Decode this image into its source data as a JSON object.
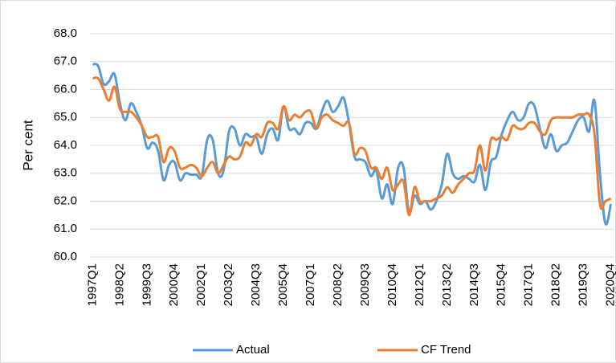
{
  "chart_data": {
    "type": "line",
    "y_label": "Per cent",
    "categories": [
      "1997Q1",
      null,
      null,
      null,
      null,
      "1998Q2",
      null,
      null,
      null,
      null,
      "1999Q3",
      null,
      null,
      null,
      null,
      "2000Q4",
      null,
      null,
      null,
      null,
      "2002Q1",
      null,
      null,
      null,
      null,
      "2003Q2",
      null,
      null,
      null,
      null,
      "2004Q3",
      null,
      null,
      null,
      null,
      "2005Q4",
      null,
      null,
      null,
      null,
      "2007Q1",
      null,
      null,
      null,
      null,
      "2008Q2",
      null,
      null,
      null,
      null,
      "2009Q3",
      null,
      null,
      null,
      null,
      "2010Q4",
      null,
      null,
      null,
      null,
      "2012Q1",
      null,
      null,
      null,
      null,
      "2013Q2",
      null,
      null,
      null,
      null,
      "2014Q3",
      null,
      null,
      null,
      null,
      "2015Q4",
      null,
      null,
      null,
      null,
      "2017Q1",
      null,
      null,
      null,
      null,
      "2018Q2",
      null,
      null,
      null,
      null,
      "2019Q3",
      null,
      null,
      null,
      null,
      "2020Q4"
    ],
    "series": [
      {
        "name": "Actual",
        "color": "#5b9bd5",
        "values": [
          66.9,
          66.85,
          66.2,
          66.3,
          66.55,
          65.5,
          64.9,
          65.5,
          65.2,
          64.7,
          63.9,
          64.1,
          63.8,
          62.75,
          63.3,
          63.4,
          62.75,
          63.0,
          62.95,
          62.95,
          62.9,
          64.2,
          64.2,
          63.0,
          63.1,
          64.5,
          64.6,
          64.0,
          64.4,
          64.3,
          64.3,
          63.7,
          64.4,
          64.6,
          64.2,
          65.4,
          64.6,
          64.6,
          64.4,
          64.8,
          64.8,
          64.6,
          65.2,
          65.6,
          65.2,
          65.4,
          65.7,
          64.8,
          63.6,
          63.5,
          63.4,
          62.9,
          63.1,
          62.1,
          62.6,
          61.9,
          63.2,
          63.2,
          61.6,
          62.2,
          61.9,
          62.0,
          61.7,
          62.0,
          62.6,
          63.7,
          63.0,
          62.8,
          62.9,
          62.8,
          62.7,
          63.3,
          62.4,
          63.4,
          63.6,
          64.4,
          64.9,
          65.2,
          64.9,
          65.0,
          65.5,
          65.4,
          64.6,
          63.9,
          64.4,
          63.8,
          64.0,
          64.1,
          64.5,
          64.9,
          65.0,
          64.5,
          65.6,
          63.0,
          61.2,
          61.9
        ]
      },
      {
        "name": "CF Trend",
        "color": "#ed7d31",
        "values": [
          66.4,
          66.4,
          66.0,
          65.6,
          66.1,
          65.3,
          65.2,
          65.2,
          65.0,
          64.7,
          64.3,
          64.3,
          64.3,
          63.4,
          63.9,
          63.8,
          63.2,
          63.2,
          63.3,
          63.2,
          62.9,
          63.2,
          63.4,
          63.0,
          63.3,
          63.6,
          63.5,
          63.6,
          64.1,
          64.0,
          64.4,
          64.3,
          64.8,
          64.8,
          64.6,
          65.4,
          64.9,
          65.1,
          65.0,
          65.2,
          65.2,
          64.6,
          65.0,
          65.1,
          64.9,
          64.8,
          64.7,
          64.8,
          63.7,
          63.9,
          63.8,
          63.2,
          63.2,
          62.8,
          63.2,
          62.4,
          62.6,
          62.7,
          61.5,
          62.5,
          62.0,
          62.0,
          62.0,
          62.1,
          62.2,
          62.5,
          62.3,
          62.6,
          62.8,
          63.0,
          63.1,
          64.0,
          63.1,
          64.2,
          64.2,
          64.3,
          64.2,
          64.7,
          64.6,
          64.6,
          64.8,
          64.8,
          64.5,
          64.4,
          64.9,
          65.0,
          65.0,
          65.0,
          65.0,
          65.1,
          65.1,
          65.1,
          64.4,
          61.9,
          62.0,
          62.1
        ]
      }
    ],
    "ylim": [
      60,
      68
    ],
    "yticks": [
      {
        "value": 60,
        "label": "60.0"
      },
      {
        "value": 61,
        "label": "61.0"
      },
      {
        "value": 62,
        "label": "62.0"
      },
      {
        "value": 63,
        "label": "63.0"
      },
      {
        "value": 64,
        "label": "64.0"
      },
      {
        "value": 65,
        "label": "65.0"
      },
      {
        "value": 66,
        "label": "66.0"
      },
      {
        "value": 67,
        "label": "67.0"
      },
      {
        "value": 68,
        "label": "68.0"
      }
    ],
    "grid": true,
    "legend": "bottom"
  }
}
